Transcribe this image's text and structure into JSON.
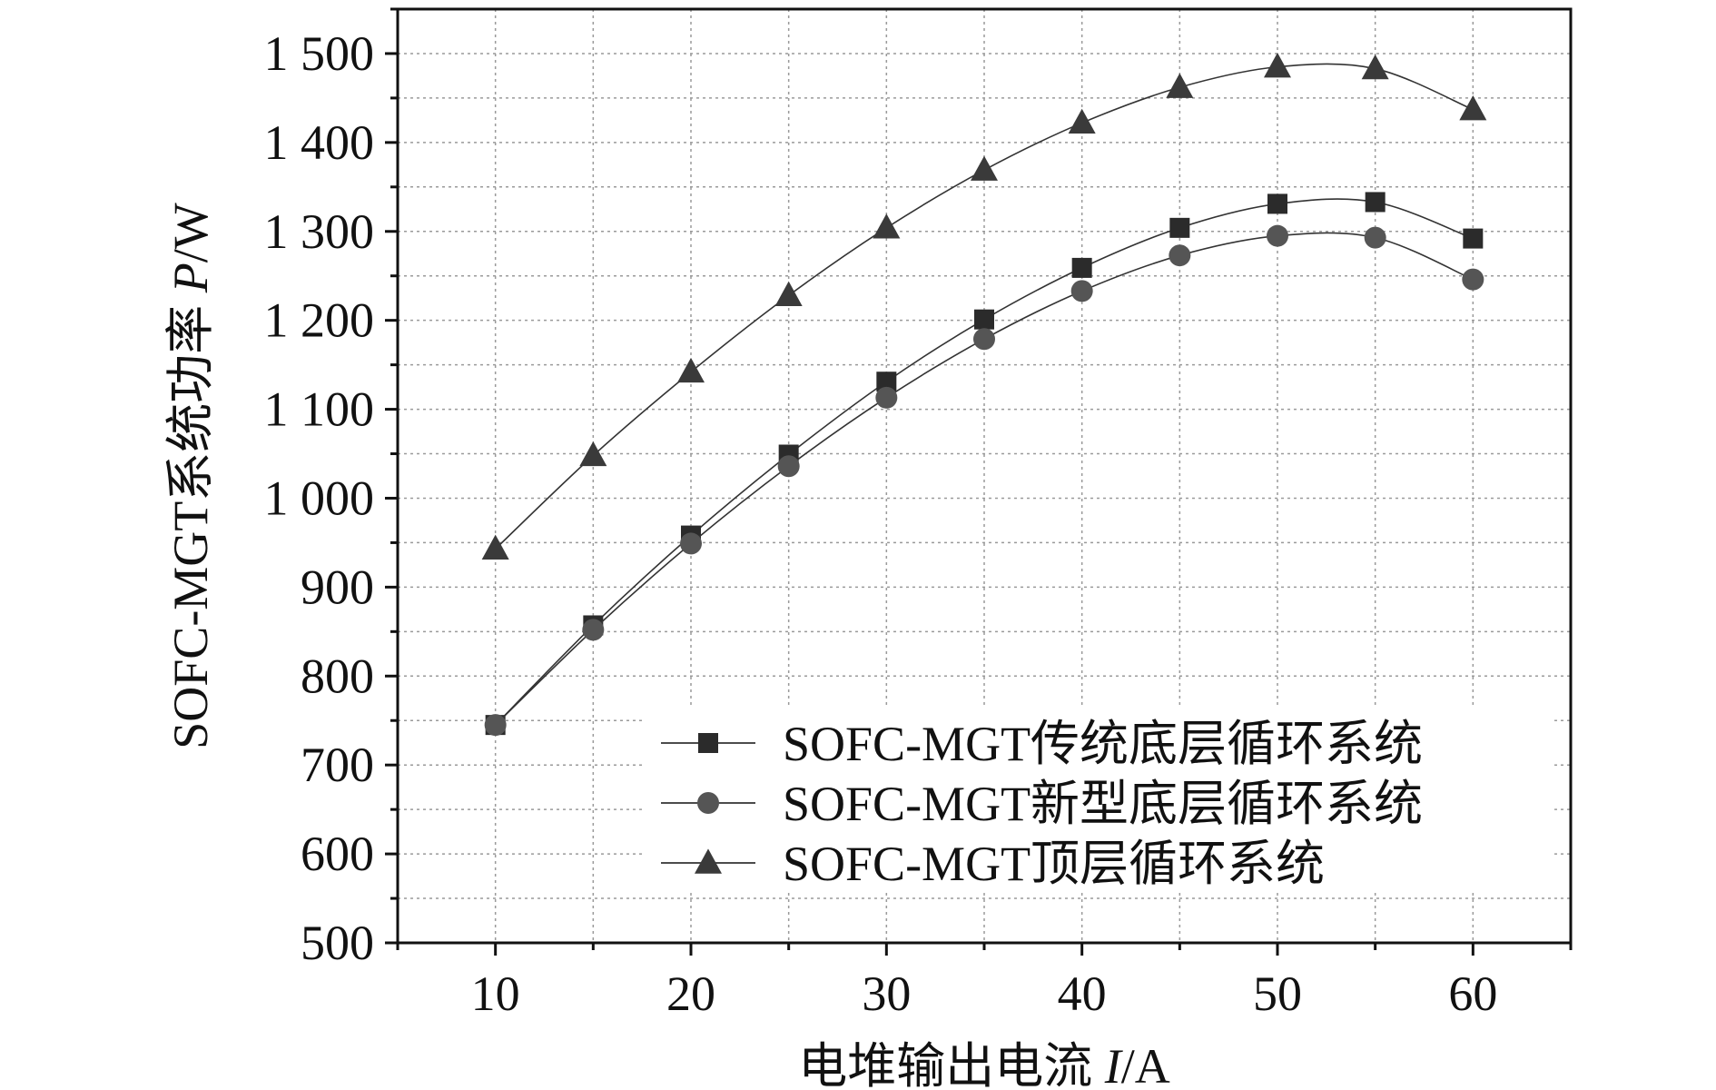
{
  "chart_data": {
    "type": "line",
    "x": [
      10,
      15,
      20,
      25,
      30,
      35,
      40,
      45,
      50,
      55,
      60
    ],
    "series": [
      {
        "name": "SOFC-MGT传统底层循环系统",
        "marker": "square",
        "color": "#2b2b2b",
        "values": [
          745,
          857,
          958,
          1049,
          1131,
          1201,
          1259,
          1304,
          1331,
          1333,
          1292
        ]
      },
      {
        "name": "SOFC-MGT新型底层循环系统",
        "marker": "circle",
        "color": "#555555",
        "values": [
          745,
          852,
          949,
          1036,
          1113,
          1179,
          1233,
          1273,
          1295,
          1293,
          1246
        ]
      },
      {
        "name": "SOFC-MGT顶层循环系统",
        "marker": "triangle",
        "color": "#3a3a3a",
        "values": [
          943,
          1048,
          1142,
          1228,
          1304,
          1369,
          1422,
          1462,
          1485,
          1483,
          1437
        ]
      }
    ],
    "xlim": [
      5,
      65
    ],
    "ylim": [
      500,
      1550
    ],
    "xticks": [
      10,
      20,
      30,
      40,
      50,
      60
    ],
    "yticks": [
      500,
      600,
      700,
      800,
      900,
      1000,
      1100,
      1200,
      1300,
      1400,
      1500
    ],
    "ytick_labels": [
      "500",
      "600",
      "700",
      "800",
      "900",
      "1 000",
      "1 100",
      "1 200",
      "1 300",
      "1 400",
      "1 500"
    ],
    "xlabel_text": "电堆输出电流 ",
    "xlabel_var": "I",
    "xlabel_unit": "/A",
    "ylabel_text": "SOFC-MGT系统功率 ",
    "ylabel_var": "P",
    "ylabel_unit": "/W",
    "grid": true,
    "legend_position": "bottom-right"
  }
}
